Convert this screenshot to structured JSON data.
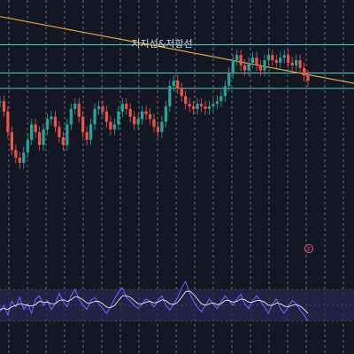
{
  "chart_data": {
    "type": "line",
    "title": "",
    "annotation": "지지선&저항선",
    "event_marker": "E",
    "grid": true,
    "theme_colors": {
      "background": "#131722",
      "grid": "#9aa0ad",
      "support_resistance": "#4fd1c5",
      "trendline": "#e0a24a",
      "candle_up": "#26a69a",
      "candle_down": "#ef5350",
      "oscillator_line": "#7b61ff",
      "oscillator_signal": "#e8e8e8",
      "oscillator_band": "#2a2550",
      "event_marker": "#e05a7a"
    },
    "price_panel": {
      "y_range": [
        0,
        100
      ],
      "support_resistance_levels": [
        86,
        75,
        69
      ],
      "trendline": {
        "start": {
          "x": 0,
          "y": 97
        },
        "end": {
          "x": 100,
          "y": 71
        }
      },
      "price_series": [
        64,
        60,
        52,
        45,
        42,
        40,
        44,
        49,
        55,
        52,
        47,
        53,
        57,
        58,
        54,
        50,
        47,
        55,
        61,
        63,
        58,
        52,
        49,
        55,
        61,
        62,
        60,
        56,
        53,
        55,
        60,
        63,
        61,
        58,
        55,
        57,
        60,
        59,
        57,
        54,
        52,
        56,
        62,
        70,
        72,
        69,
        66,
        63,
        62,
        61,
        63,
        62,
        61,
        62,
        63,
        64,
        66,
        70,
        75,
        80,
        82,
        78,
        76,
        79,
        81,
        78,
        76,
        80,
        82,
        80,
        79,
        81,
        82,
        79,
        78,
        80,
        77,
        74,
        72
      ]
    },
    "oscillator_panel": {
      "y_range": [
        0,
        100
      ],
      "upper_band": 70,
      "lower_band": 30,
      "midline": 50,
      "oscillator_series": [
        42,
        50,
        38,
        55,
        48,
        60,
        45,
        52,
        40,
        58,
        62,
        50,
        56,
        45,
        52,
        65,
        55,
        48,
        62,
        70,
        58,
        50,
        45,
        56,
        60,
        52,
        46,
        40,
        48,
        58,
        66,
        72,
        60,
        55,
        50,
        46,
        52,
        58,
        55,
        48,
        56,
        62,
        50,
        44,
        52,
        60,
        72,
        80,
        66,
        55,
        48,
        42,
        50,
        58,
        52,
        46,
        54,
        62,
        56,
        50,
        58,
        64,
        52,
        46,
        56,
        62,
        55,
        48,
        40,
        52,
        58,
        46,
        40,
        48,
        56,
        52,
        44,
        38,
        30
      ],
      "signal_series": [
        45,
        46,
        45,
        48,
        50,
        52,
        51,
        50,
        49,
        51,
        55,
        54,
        54,
        52,
        52,
        56,
        57,
        55,
        57,
        61,
        60,
        57,
        53,
        53,
        55,
        55,
        52,
        48,
        47,
        50,
        56,
        62,
        62,
        60,
        56,
        52,
        52,
        54,
        55,
        53,
        54,
        57,
        56,
        52,
        51,
        54,
        60,
        67,
        68,
        64,
        58,
        52,
        50,
        52,
        53,
        51,
        52,
        56,
        56,
        54,
        55,
        58,
        57,
        54,
        54,
        56,
        56,
        54,
        50,
        50,
        53,
        52,
        49,
        48,
        50,
        51,
        49,
        45,
        40
      ]
    }
  }
}
